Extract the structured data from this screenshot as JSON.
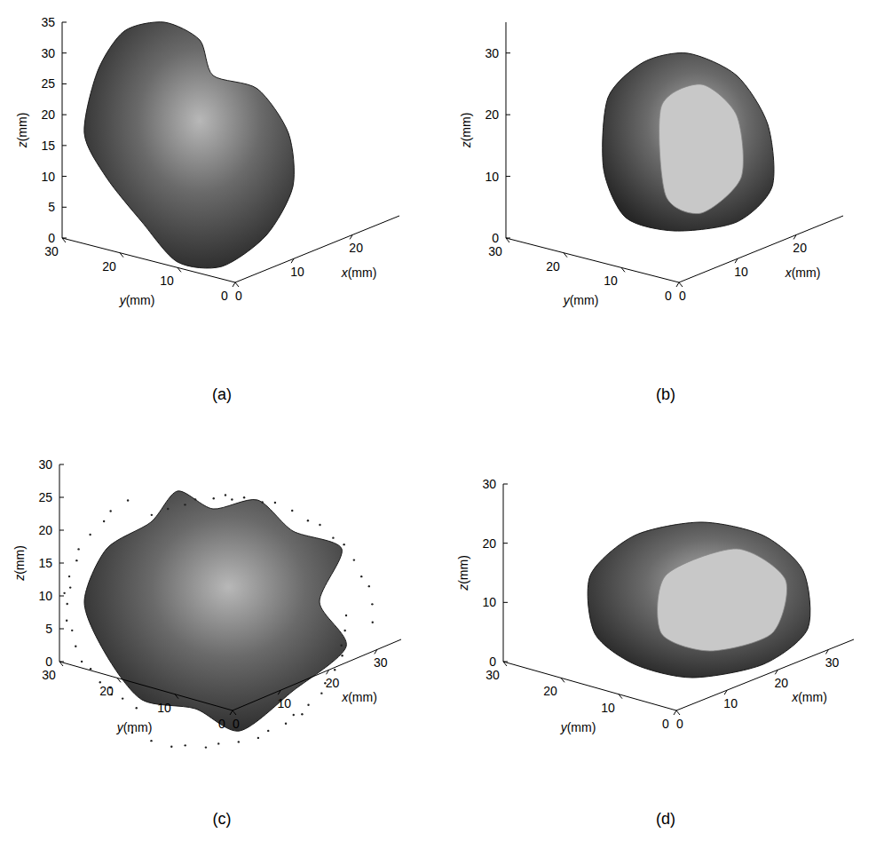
{
  "chart_data": [
    {
      "type": "surface3d",
      "panel": "(a)",
      "x_label": "x(mm)",
      "y_label": "y(mm)",
      "z_label": "z(mm)",
      "xlim": [
        0,
        28
      ],
      "xticks": [
        0,
        10,
        20
      ],
      "ylim": [
        0,
        30
      ],
      "yticks": [
        0,
        10,
        20,
        30
      ],
      "zlim": [
        0,
        35
      ],
      "zticks": [
        0,
        5,
        10,
        15,
        20,
        25,
        30,
        35
      ]
    },
    {
      "type": "surface3d",
      "panel": "(b)",
      "x_label": "x(mm)",
      "y_label": "y(mm)",
      "z_label": "z(mm)",
      "xlim": [
        0,
        28
      ],
      "xticks": [
        0,
        10,
        20
      ],
      "ylim": [
        0,
        30
      ],
      "yticks": [
        0,
        10,
        20,
        30
      ],
      "zlim": [
        0,
        35
      ],
      "zticks": [
        0,
        10,
        20,
        30
      ]
    },
    {
      "type": "surface3d",
      "panel": "(c)",
      "x_label": "x(mm)",
      "y_label": "y(mm)",
      "z_label": "z(mm)",
      "xlim": [
        0,
        35
      ],
      "xticks": [
        0,
        10,
        20,
        30
      ],
      "ylim": [
        0,
        30
      ],
      "yticks": [
        0,
        10,
        20,
        30
      ],
      "zlim": [
        0,
        30
      ],
      "zticks": [
        0,
        5,
        10,
        15,
        20,
        25,
        30
      ]
    },
    {
      "type": "surface3d",
      "panel": "(d)",
      "x_label": "x(mm)",
      "y_label": "y(mm)",
      "z_label": "z(mm)",
      "xlim": [
        0,
        35
      ],
      "xticks": [
        0,
        10,
        20,
        30
      ],
      "ylim": [
        0,
        30
      ],
      "yticks": [
        0,
        10,
        20,
        30
      ],
      "zlim": [
        0,
        30
      ],
      "zticks": [
        0,
        10,
        20,
        30
      ]
    }
  ]
}
